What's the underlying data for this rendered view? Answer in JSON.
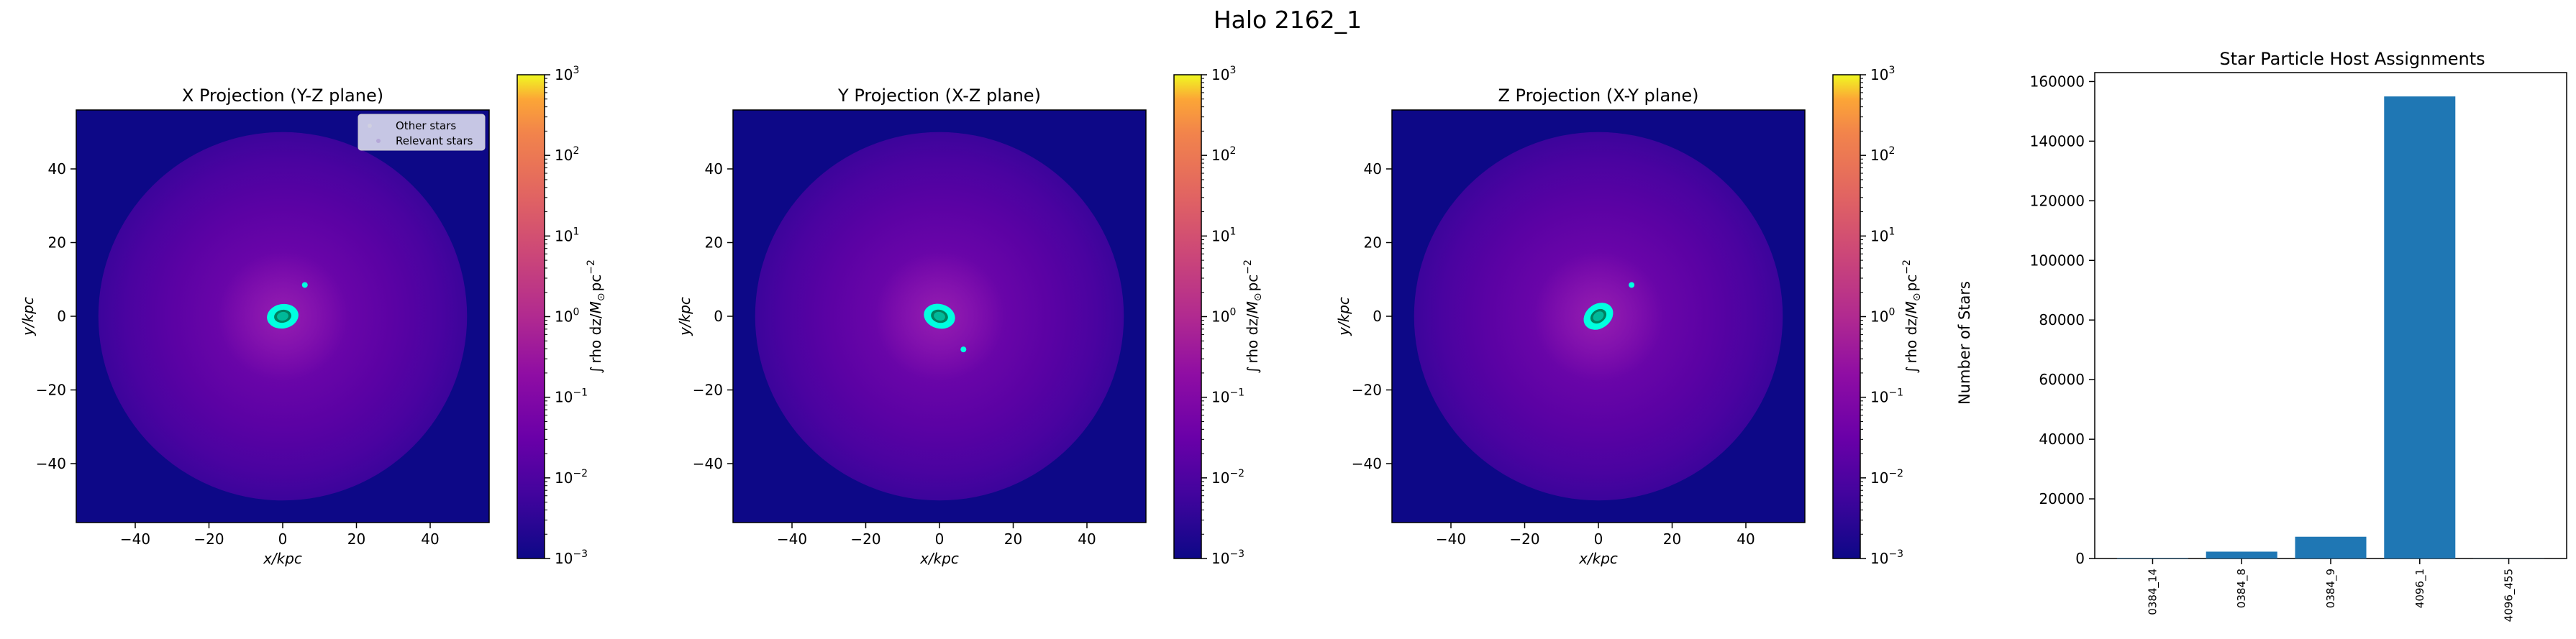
{
  "figure": {
    "title": "Halo 2162_1"
  },
  "colorbar": {
    "label_integral": "∫",
    "label_text": "rho dz/",
    "label_unit_m": "M",
    "label_unit_sub": "⊙",
    "label_unit_pc": "pc",
    "label_unit_exp": "−2",
    "tick_base": "10",
    "tick_exponents": [
      "−3",
      "−2",
      "−1",
      "0",
      "1",
      "2",
      "3"
    ],
    "range": [
      0.001,
      1000
    ],
    "scale": "log",
    "colormap": "plasma"
  },
  "panels": [
    {
      "title": "X Projection (Y-Z plane)",
      "xlabel": "x/kpc",
      "ylabel": "y/kpc",
      "legend": {
        "other": "Other stars",
        "relevant": "Relevant stars"
      },
      "extra_star": [
        6,
        8.5
      ]
    },
    {
      "title": "Y Projection (X-Z plane)",
      "xlabel": "x/kpc",
      "ylabel": "y/kpc",
      "extra_star": [
        6.5,
        -9
      ]
    },
    {
      "title": "Z Projection (X-Y plane)",
      "xlabel": "x/kpc",
      "ylabel": "y/kpc",
      "extra_star": [
        9,
        8.5
      ]
    }
  ],
  "proj_axes": {
    "xlim": [
      -56,
      56
    ],
    "ylim": [
      -56,
      56
    ],
    "xticks": [
      "−40",
      "−20",
      "0",
      "20",
      "40"
    ],
    "yticks": [
      "40",
      "20",
      "0",
      "−20",
      "−40"
    ]
  },
  "colors": {
    "background_density": "#0d0887",
    "halo_mid": "#6a00a8",
    "relevant_stars": "#00ffe0",
    "other_stars": "#008060",
    "bar": "#1f77b4"
  },
  "chart_data": {
    "type": "bar",
    "title": "Star Particle Host Assignments",
    "xlabel": "",
    "ylabel": "Number of Stars",
    "categories": [
      "0384_14",
      "0384_8",
      "0384_9",
      "4096_1",
      "4096_455"
    ],
    "values": [
      150,
      2300,
      7300,
      155000,
      40
    ],
    "ylim": [
      0,
      163000
    ],
    "yticks": [
      0,
      20000,
      40000,
      60000,
      80000,
      100000,
      120000,
      140000,
      160000
    ],
    "grid": false
  }
}
